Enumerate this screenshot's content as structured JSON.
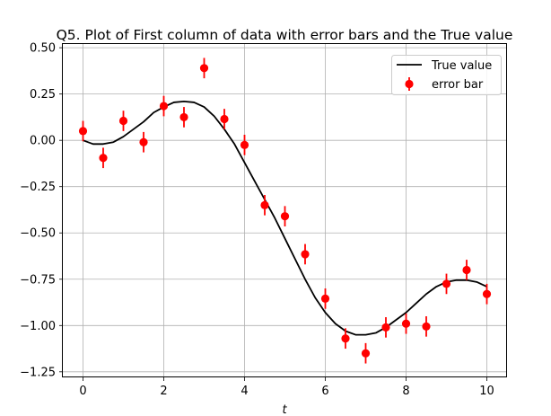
{
  "chart_data": {
    "type": "scatter",
    "title": "Q5. Plot of First column of data with error bars and the True value",
    "xlabel": "t",
    "ylabel": "",
    "xlim": [
      -0.5,
      10.5
    ],
    "ylim": [
      -1.28,
      0.52
    ],
    "xticks": [
      0,
      2,
      4,
      6,
      8,
      10
    ],
    "xtick_labels": [
      "0",
      "2",
      "4",
      "6",
      "8",
      "10"
    ],
    "yticks": [
      0.5,
      0.25,
      0.0,
      -0.25,
      -0.5,
      -0.75,
      -1.0,
      -1.25
    ],
    "ytick_labels": [
      "0.50",
      "0.25",
      "0.00",
      "−0.25",
      "−0.50",
      "−0.75",
      "−1.00",
      "−1.25"
    ],
    "grid": true,
    "legend_position": "top-right",
    "series": [
      {
        "name": "True value",
        "kind": "line",
        "color": "#000000",
        "x": [
          0.0,
          0.25,
          0.5,
          0.75,
          1.0,
          1.25,
          1.5,
          1.75,
          2.0,
          2.25,
          2.5,
          2.75,
          3.0,
          3.25,
          3.5,
          3.75,
          4.0,
          4.25,
          4.5,
          4.75,
          5.0,
          5.25,
          5.5,
          5.75,
          6.0,
          6.25,
          6.5,
          6.75,
          7.0,
          7.25,
          7.5,
          7.75,
          8.0,
          8.25,
          8.5,
          8.75,
          9.0,
          9.25,
          9.5,
          9.75,
          10.0
        ],
        "y": [
          0.0,
          -0.02,
          -0.02,
          -0.01,
          0.02,
          0.06,
          0.1,
          0.15,
          0.18,
          0.205,
          0.21,
          0.205,
          0.18,
          0.13,
          0.06,
          -0.02,
          -0.12,
          -0.22,
          -0.32,
          -0.42,
          -0.53,
          -0.64,
          -0.75,
          -0.85,
          -0.93,
          -0.99,
          -1.03,
          -1.05,
          -1.05,
          -1.04,
          -1.01,
          -0.97,
          -0.93,
          -0.88,
          -0.83,
          -0.79,
          -0.765,
          -0.755,
          -0.755,
          -0.765,
          -0.79
        ]
      },
      {
        "name": "error bar",
        "kind": "errorbar",
        "color": "#ff0000",
        "x": [
          0.0,
          0.5,
          1.0,
          1.5,
          2.0,
          2.5,
          3.0,
          3.5,
          4.0,
          4.5,
          5.0,
          5.5,
          6.0,
          6.5,
          7.0,
          7.5,
          8.0,
          8.5,
          9.0,
          9.5,
          10.0
        ],
        "y": [
          0.05,
          -0.095,
          0.105,
          -0.01,
          0.185,
          0.125,
          0.39,
          0.115,
          -0.025,
          -0.35,
          -0.41,
          -0.615,
          -0.855,
          -1.07,
          -1.15,
          -1.01,
          -0.99,
          -1.005,
          -0.775,
          -0.7,
          -0.83
        ],
        "yerr": 0.055
      }
    ]
  }
}
